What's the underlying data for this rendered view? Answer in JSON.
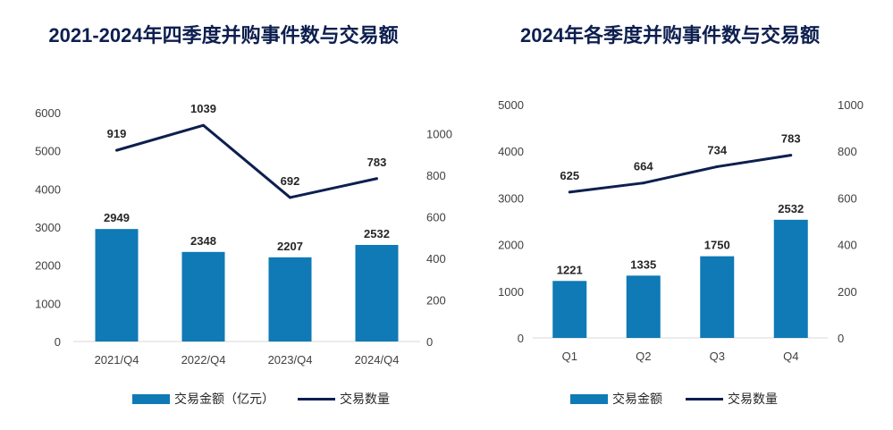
{
  "colors": {
    "bar": "#0f7ab5",
    "line": "#0d1f4f"
  },
  "chart_data": [
    {
      "type": "bar",
      "title": "2021-2024年四季度并购事件数与交易额",
      "categories": [
        "2021/Q4",
        "2022/Q4",
        "2023/Q4",
        "2024/Q4"
      ],
      "series": [
        {
          "name": "交易金额（亿元）",
          "type": "bar",
          "axis": "left",
          "values": [
            2949,
            2348,
            2207,
            2532
          ]
        },
        {
          "name": "交易数量",
          "type": "line",
          "axis": "right",
          "values": [
            919,
            1039,
            692,
            783
          ]
        }
      ],
      "ylim_left": [
        0,
        6000
      ],
      "yticks_left": [
        0,
        1000,
        2000,
        3000,
        4000,
        5000,
        6000
      ],
      "ylim_right": [
        0,
        1100
      ],
      "yticks_right": [
        0,
        200,
        400,
        600,
        800,
        1000
      ],
      "legend": "bottom",
      "grid": false
    },
    {
      "type": "bar",
      "title": "2024年各季度并购事件数与交易额",
      "categories": [
        "Q1",
        "Q2",
        "Q3",
        "Q4"
      ],
      "series": [
        {
          "name": "交易金额",
          "type": "bar",
          "axis": "left",
          "values": [
            1221,
            1335,
            1750,
            2532
          ]
        },
        {
          "name": "交易数量",
          "type": "line",
          "axis": "right",
          "values": [
            625,
            664,
            734,
            783
          ]
        }
      ],
      "ylim_left": [
        0,
        5000
      ],
      "yticks_left": [
        0,
        1000,
        2000,
        3000,
        4000,
        5000
      ],
      "ylim_right": [
        0,
        1000
      ],
      "yticks_right": [
        0,
        200,
        400,
        600,
        800,
        1000
      ],
      "legend": "bottom",
      "grid": false
    }
  ]
}
